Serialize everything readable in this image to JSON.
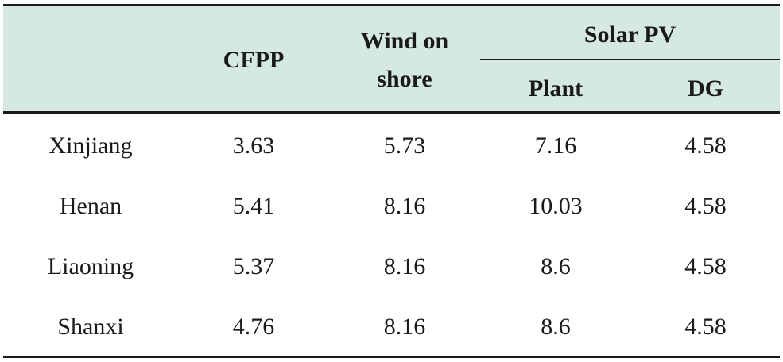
{
  "header": {
    "col_cfpp": "CFPP",
    "col_wind_line1": "Wind on",
    "col_wind_line2": "shore",
    "group_solar": "Solar PV",
    "sub_plant": "Plant",
    "sub_dg": "DG"
  },
  "rows": [
    {
      "region": "Xinjiang",
      "cfpp": "3.63",
      "wind": "5.73",
      "plant": "7.16",
      "dg": "4.58"
    },
    {
      "region": "Henan",
      "cfpp": "5.41",
      "wind": "8.16",
      "plant": "10.03",
      "dg": "4.58"
    },
    {
      "region": "Liaoning",
      "cfpp": "5.37",
      "wind": "8.16",
      "plant": "8.6",
      "dg": "4.58"
    },
    {
      "region": "Shanxi",
      "cfpp": "4.76",
      "wind": "8.16",
      "plant": "8.6",
      "dg": "4.58"
    }
  ]
}
